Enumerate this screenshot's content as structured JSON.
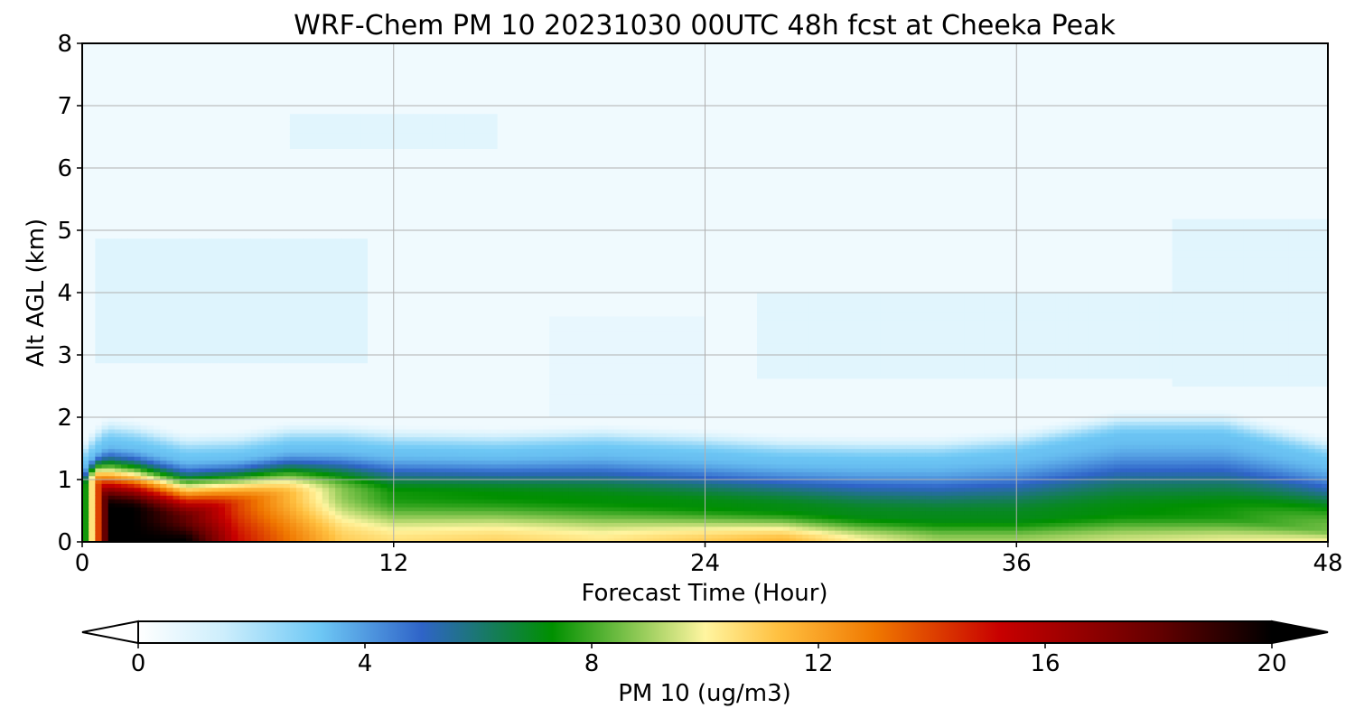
{
  "chart_data": {
    "type": "heatmap",
    "title": "WRF-Chem PM 10  20231030 00UTC 48h fcst at Cheeka Peak",
    "xlabel": "Forecast Time (Hour)",
    "ylabel": "Alt AGL (km)",
    "xlim": [
      0,
      48
    ],
    "ylim": [
      0,
      8
    ],
    "x_ticks": [
      0,
      12,
      24,
      36,
      48
    ],
    "y_ticks": [
      0,
      1,
      2,
      3,
      4,
      5,
      6,
      7,
      8
    ],
    "grid": true,
    "colorbar": {
      "label": "PM 10  (ug/m3)",
      "min": 0,
      "max": 20,
      "ticks": [
        0,
        4,
        8,
        12,
        16,
        20
      ],
      "extend": "both",
      "placement": "bottom",
      "color_stops": [
        {
          "value": 0,
          "color": "#ffffff"
        },
        {
          "value": 1.5,
          "color": "#cdeefc"
        },
        {
          "value": 3.2,
          "color": "#6ec8f5"
        },
        {
          "value": 5,
          "color": "#2f64c8"
        },
        {
          "value": 7.3,
          "color": "#009000"
        },
        {
          "value": 9,
          "color": "#a0d060"
        },
        {
          "value": 10,
          "color": "#fff5a0"
        },
        {
          "value": 11.3,
          "color": "#ffc040"
        },
        {
          "value": 13,
          "color": "#f07800"
        },
        {
          "value": 15.2,
          "color": "#c80000"
        },
        {
          "value": 18,
          "color": "#640000"
        },
        {
          "value": 20,
          "color": "#000000"
        }
      ]
    },
    "series": [
      {
        "hour": 0,
        "surface_value": 6,
        "ridge_height_km": 0.85,
        "ridge_peak": 6,
        "top_height_km": 1.2
      },
      {
        "hour": 0.5,
        "surface_value": 12,
        "ridge_height_km": 1.0,
        "ridge_peak": 12,
        "top_height_km": 1.45
      },
      {
        "hour": 1,
        "surface_value": 20,
        "ridge_height_km": 0.55,
        "ridge_peak": 20,
        "top_height_km": 1.6
      },
      {
        "hour": 2,
        "surface_value": 20,
        "ridge_height_km": 0.5,
        "ridge_peak": 20,
        "top_height_km": 1.55
      },
      {
        "hour": 4,
        "surface_value": 20,
        "ridge_height_km": 0.35,
        "ridge_peak": 18,
        "top_height_km": 1.35
      },
      {
        "hour": 6,
        "surface_value": 15,
        "ridge_height_km": 0.6,
        "ridge_peak": 14,
        "top_height_km": 1.38
      },
      {
        "hour": 8,
        "surface_value": 13,
        "ridge_height_km": 0.75,
        "ridge_peak": 11.5,
        "top_height_km": 1.52
      },
      {
        "hour": 10,
        "surface_value": 11,
        "ridge_height_km": 0.8,
        "ridge_peak": 8.8,
        "top_height_km": 1.52
      },
      {
        "hour": 12,
        "surface_value": 10.5,
        "ridge_height_km": 0.75,
        "ridge_peak": 7.5,
        "top_height_km": 1.45
      },
      {
        "hour": 16,
        "surface_value": 10.8,
        "ridge_height_km": 0.75,
        "ridge_peak": 7.3,
        "top_height_km": 1.42
      },
      {
        "hour": 20,
        "surface_value": 10.3,
        "ridge_height_km": 0.7,
        "ridge_peak": 7.2,
        "top_height_km": 1.48
      },
      {
        "hour": 24,
        "surface_value": 11,
        "ridge_height_km": 0.6,
        "ridge_peak": 7.2,
        "top_height_km": 1.4
      },
      {
        "hour": 27,
        "surface_value": 11.5,
        "ridge_height_km": 0.55,
        "ridge_peak": 7.1,
        "top_height_km": 1.32
      },
      {
        "hour": 30,
        "surface_value": 10,
        "ridge_height_km": 0.45,
        "ridge_peak": 7.0,
        "top_height_km": 1.3
      },
      {
        "hour": 33,
        "surface_value": 9,
        "ridge_height_km": 0.4,
        "ridge_peak": 7.0,
        "top_height_km": 1.3
      },
      {
        "hour": 36,
        "surface_value": 9,
        "ridge_height_km": 0.4,
        "ridge_peak": 7.0,
        "top_height_km": 1.4
      },
      {
        "hour": 40,
        "surface_value": 9.5,
        "ridge_height_km": 0.5,
        "ridge_peak": 7.2,
        "top_height_km": 1.7
      },
      {
        "hour": 44,
        "surface_value": 9.8,
        "ridge_height_km": 0.45,
        "ridge_peak": 7.5,
        "top_height_km": 1.7
      },
      {
        "hour": 48,
        "surface_value": 10,
        "ridge_height_km": 0.2,
        "ridge_peak": 8.5,
        "top_height_km": 1.3
      }
    ],
    "aloft_patches": [
      {
        "x0": 0.5,
        "x1": 11,
        "y0": 2.9,
        "y1": 4.9,
        "value": 1.0
      },
      {
        "x0": 18,
        "x1": 24,
        "y0": 2.0,
        "y1": 3.6,
        "value": 0.7
      },
      {
        "x0": 26,
        "x1": 45,
        "y0": 2.6,
        "y1": 4.0,
        "value": 0.9
      },
      {
        "x0": 42,
        "x1": 48,
        "y0": 2.5,
        "y1": 5.2,
        "value": 0.9
      },
      {
        "x0": 8,
        "x1": 16,
        "y0": 6.3,
        "y1": 6.9,
        "value": 0.9
      },
      {
        "x0": 0.5,
        "x1": 6,
        "y0": 5.2,
        "y1": 5.8,
        "value": 0.2
      },
      {
        "x0": 34,
        "x1": 37,
        "y0": 6.0,
        "y1": 8.0,
        "value": 0.2
      }
    ]
  }
}
